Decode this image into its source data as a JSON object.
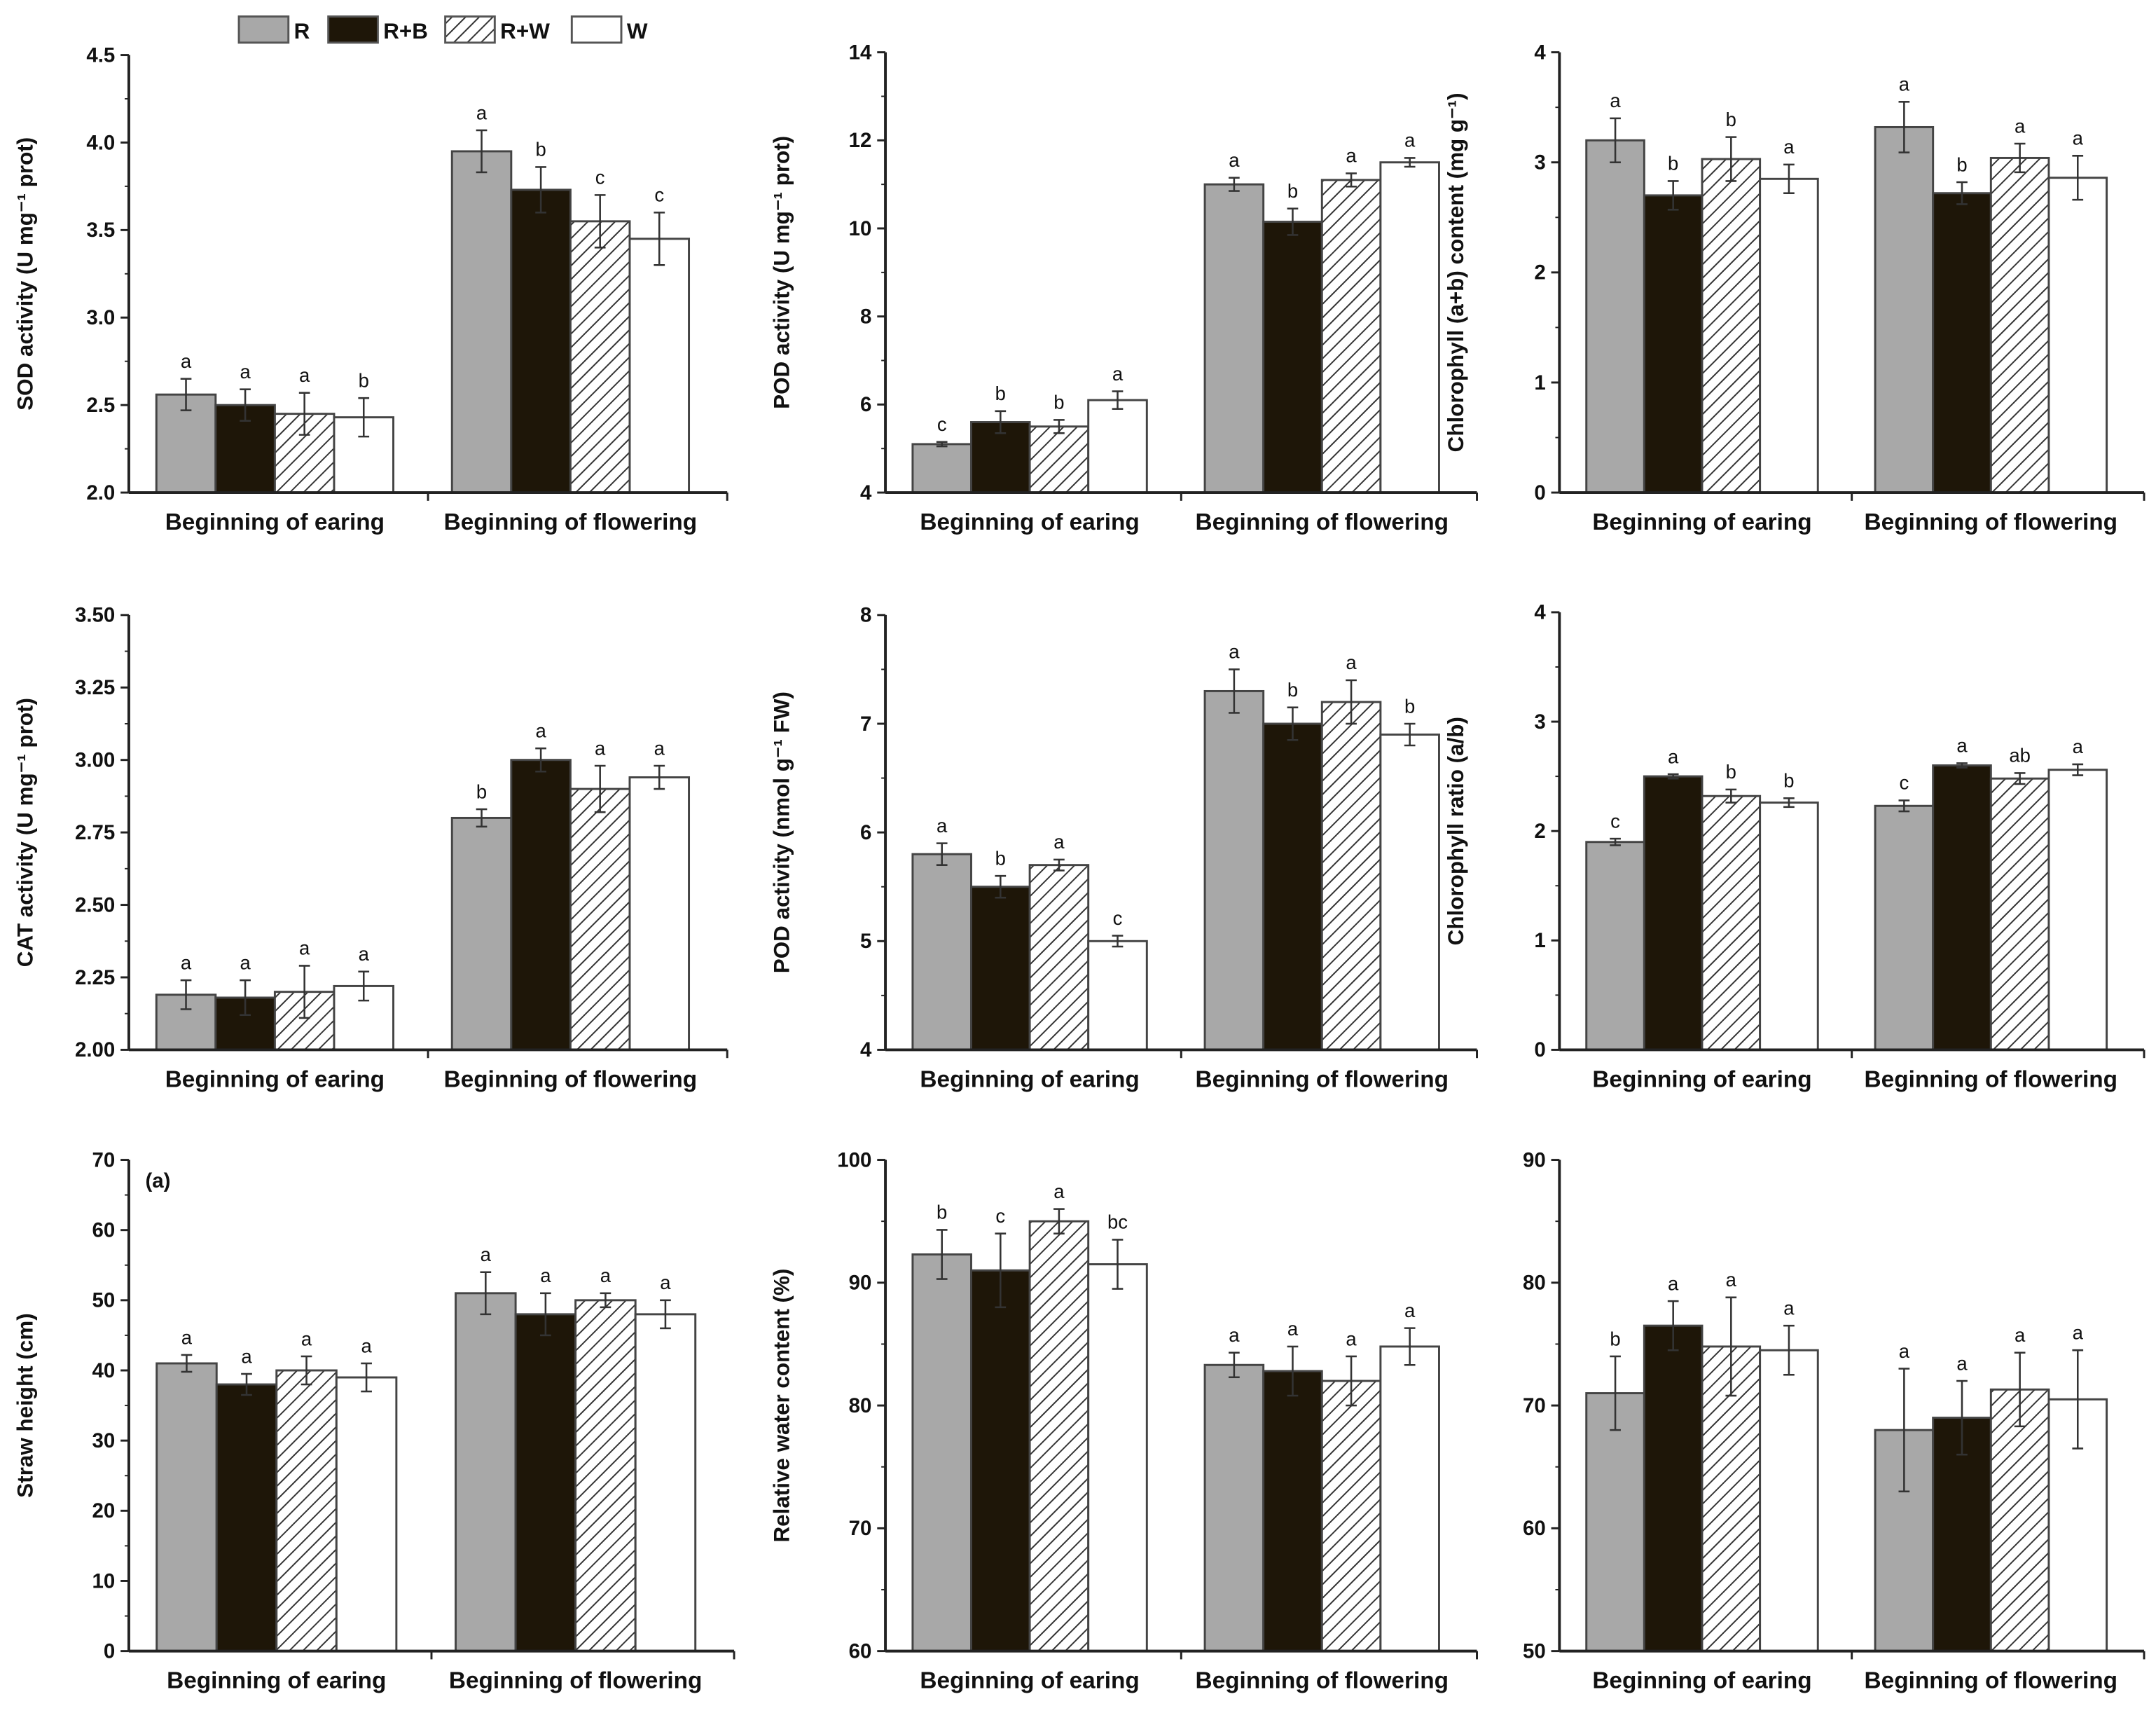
{
  "legend": {
    "placement": "top",
    "items": [
      {
        "name": "R",
        "color": "#a8a8a8",
        "pattern": "solid"
      },
      {
        "name": "R+B",
        "color": "#1e1608",
        "pattern": "solid"
      },
      {
        "name": "R+W",
        "color": "#ffffff",
        "pattern": "hatch"
      },
      {
        "name": "W",
        "color": "#ffffff",
        "pattern": "solid"
      }
    ]
  },
  "chart_data": [
    {
      "type": "bar",
      "ylabel": "SOD activity (U mg⁻¹ prot)",
      "ylim": [
        2.0,
        4.5
      ],
      "yticks": [
        "2.0",
        "2.5",
        "3.0",
        "3.5",
        "4.0",
        "4.5"
      ],
      "categories": [
        "Beginning of earing",
        "Beginning of flowering"
      ],
      "series": [
        {
          "name": "R",
          "values": [
            2.56,
            3.95
          ],
          "errors": [
            0.09,
            0.12
          ],
          "letters": [
            "a",
            "a"
          ]
        },
        {
          "name": "R+B",
          "values": [
            2.5,
            3.73
          ],
          "errors": [
            0.09,
            0.13
          ],
          "letters": [
            "a",
            "b"
          ]
        },
        {
          "name": "R+W",
          "values": [
            2.45,
            3.55
          ],
          "errors": [
            0.12,
            0.15
          ],
          "letters": [
            "a",
            "c"
          ]
        },
        {
          "name": "W",
          "values": [
            2.43,
            3.45
          ],
          "errors": [
            0.11,
            0.15
          ],
          "letters": [
            "b",
            "c"
          ]
        }
      ]
    },
    {
      "type": "bar",
      "ylabel": "POD activity (U mg⁻¹ prot)",
      "ylim": [
        4,
        14
      ],
      "yticks": [
        "4",
        "6",
        "8",
        "10",
        "12",
        "14"
      ],
      "categories": [
        "Beginning of earing",
        "Beginning of flowering"
      ],
      "series": [
        {
          "name": "R",
          "values": [
            5.1,
            11.0
          ],
          "errors": [
            0.05,
            0.15
          ],
          "letters": [
            "c",
            "a"
          ]
        },
        {
          "name": "R+B",
          "values": [
            5.6,
            10.15
          ],
          "errors": [
            0.25,
            0.3
          ],
          "letters": [
            "b",
            "b"
          ]
        },
        {
          "name": "R+W",
          "values": [
            5.5,
            11.1
          ],
          "errors": [
            0.15,
            0.15
          ],
          "letters": [
            "b",
            "a"
          ]
        },
        {
          "name": "W",
          "values": [
            6.1,
            11.5
          ],
          "errors": [
            0.2,
            0.1
          ],
          "letters": [
            "a",
            "a"
          ]
        }
      ]
    },
    {
      "type": "bar",
      "ylabel": "Chlorophyll (a+b) content (mg g⁻¹)",
      "ylim": [
        0,
        4
      ],
      "yticks": [
        "0",
        "1",
        "2",
        "3",
        "4"
      ],
      "categories": [
        "Beginning of earing",
        "Beginning of flowering"
      ],
      "series": [
        {
          "name": "R",
          "values": [
            3.2,
            3.32
          ],
          "errors": [
            0.2,
            0.23
          ],
          "letters": [
            "a",
            "a"
          ]
        },
        {
          "name": "R+B",
          "values": [
            2.7,
            2.72
          ],
          "errors": [
            0.13,
            0.1
          ],
          "letters": [
            "b",
            "b"
          ]
        },
        {
          "name": "R+W",
          "values": [
            3.03,
            3.04
          ],
          "errors": [
            0.2,
            0.13
          ],
          "letters": [
            "b",
            "a"
          ]
        },
        {
          "name": "W",
          "values": [
            2.85,
            2.86
          ],
          "errors": [
            0.13,
            0.2
          ],
          "letters": [
            "a",
            "a"
          ]
        }
      ]
    },
    {
      "type": "bar",
      "ylabel": "CAT activity (U mg⁻¹ prot)",
      "ylim": [
        2.0,
        3.5
      ],
      "yticks": [
        "2.00",
        "2.25",
        "2.50",
        "2.75",
        "3.00",
        "3.25",
        "3.50"
      ],
      "categories": [
        "Beginning of earing",
        "Beginning of flowering"
      ],
      "series": [
        {
          "name": "R",
          "values": [
            2.19,
            2.8
          ],
          "errors": [
            0.05,
            0.03
          ],
          "letters": [
            "a",
            "b"
          ]
        },
        {
          "name": "R+B",
          "values": [
            2.18,
            3.0
          ],
          "errors": [
            0.06,
            0.04
          ],
          "letters": [
            "a",
            "a"
          ]
        },
        {
          "name": "R+W",
          "values": [
            2.2,
            2.9
          ],
          "errors": [
            0.09,
            0.08
          ],
          "letters": [
            "a",
            "a"
          ]
        },
        {
          "name": "W",
          "values": [
            2.22,
            2.94
          ],
          "errors": [
            0.05,
            0.04
          ],
          "letters": [
            "a",
            "a"
          ]
        }
      ]
    },
    {
      "type": "bar",
      "ylabel": "POD activity (nmol g⁻¹ FW)",
      "ylim": [
        4,
        8
      ],
      "yticks": [
        "4",
        "5",
        "6",
        "7",
        "8"
      ],
      "categories": [
        "Beginning of earing",
        "Beginning of flowering"
      ],
      "series": [
        {
          "name": "R",
          "values": [
            5.8,
            7.3
          ],
          "errors": [
            0.1,
            0.2
          ],
          "letters": [
            "a",
            "a"
          ]
        },
        {
          "name": "R+B",
          "values": [
            5.5,
            7.0
          ],
          "errors": [
            0.1,
            0.15
          ],
          "letters": [
            "b",
            "b"
          ]
        },
        {
          "name": "R+W",
          "values": [
            5.7,
            7.2
          ],
          "errors": [
            0.05,
            0.2
          ],
          "letters": [
            "a",
            "a"
          ]
        },
        {
          "name": "W",
          "values": [
            5.0,
            6.9
          ],
          "errors": [
            0.05,
            0.1
          ],
          "letters": [
            "c",
            "b"
          ]
        }
      ]
    },
    {
      "type": "bar",
      "ylabel": "Chlorophyll ratio (a/b)",
      "ylim": [
        0,
        4
      ],
      "yticks": [
        "0",
        "1",
        "2",
        "3",
        "4"
      ],
      "categories": [
        "Beginning of earing",
        "Beginning of flowering"
      ],
      "series": [
        {
          "name": "R",
          "values": [
            1.9,
            2.23
          ],
          "errors": [
            0.03,
            0.05
          ],
          "letters": [
            "c",
            "c"
          ]
        },
        {
          "name": "R+B",
          "values": [
            2.5,
            2.6
          ],
          "errors": [
            0.02,
            0.02
          ],
          "letters": [
            "a",
            "a"
          ]
        },
        {
          "name": "R+W",
          "values": [
            2.32,
            2.48
          ],
          "errors": [
            0.06,
            0.05
          ],
          "letters": [
            "b",
            "ab"
          ]
        },
        {
          "name": "W",
          "values": [
            2.26,
            2.56
          ],
          "errors": [
            0.04,
            0.05
          ],
          "letters": [
            "b",
            "a"
          ]
        }
      ]
    },
    {
      "type": "bar",
      "ylabel": "Straw height (cm)",
      "ylim": [
        0,
        70
      ],
      "annotation": "(a)",
      "yticks": [
        "0",
        "10",
        "20",
        "30",
        "40",
        "50",
        "60",
        "70"
      ],
      "categories": [
        "Beginning of earing",
        "Beginning of flowering"
      ],
      "series": [
        {
          "name": "R",
          "values": [
            41,
            51
          ],
          "errors": [
            1.2,
            3
          ],
          "letters": [
            "a",
            "a"
          ]
        },
        {
          "name": "R+B",
          "values": [
            38,
            48
          ],
          "errors": [
            1.5,
            3
          ],
          "letters": [
            "a",
            "a"
          ]
        },
        {
          "name": "R+W",
          "values": [
            40,
            50
          ],
          "errors": [
            2,
            1
          ],
          "letters": [
            "a",
            "a"
          ]
        },
        {
          "name": "W",
          "values": [
            39,
            48
          ],
          "errors": [
            2,
            2
          ],
          "letters": [
            "a",
            "a"
          ]
        }
      ]
    },
    {
      "type": "bar",
      "ylabel": "Relative water content (%)",
      "ylim": [
        60,
        100
      ],
      "yticks": [
        "60",
        "70",
        "80",
        "90",
        "100"
      ],
      "categories": [
        "Beginning of earing",
        "Beginning of flowering"
      ],
      "series": [
        {
          "name": "R",
          "values": [
            92.3,
            83.3
          ],
          "errors": [
            2,
            1
          ],
          "letters": [
            "b",
            "a"
          ]
        },
        {
          "name": "R+B",
          "values": [
            91,
            82.8
          ],
          "errors": [
            3,
            2
          ],
          "letters": [
            "c",
            "a"
          ]
        },
        {
          "name": "R+W",
          "values": [
            95,
            82
          ],
          "errors": [
            1,
            2
          ],
          "letters": [
            "a",
            "a"
          ]
        },
        {
          "name": "W",
          "values": [
            91.5,
            84.8
          ],
          "errors": [
            2,
            1.5
          ],
          "letters": [
            "bc",
            "a"
          ]
        }
      ]
    },
    {
      "type": "bar",
      "ylabel": "",
      "ylim": [
        50,
        90
      ],
      "yticks": [
        "50",
        "60",
        "70",
        "80",
        "90"
      ],
      "categories": [
        "Beginning of earing",
        "Beginning of flowering"
      ],
      "series": [
        {
          "name": "R",
          "values": [
            71,
            68
          ],
          "errors": [
            3,
            5
          ],
          "letters": [
            "b",
            "a"
          ]
        },
        {
          "name": "R+B",
          "values": [
            76.5,
            69
          ],
          "errors": [
            2,
            3
          ],
          "letters": [
            "a",
            "a"
          ]
        },
        {
          "name": "R+W",
          "values": [
            74.8,
            71.3
          ],
          "errors": [
            4,
            3
          ],
          "letters": [
            "a",
            "a"
          ]
        },
        {
          "name": "W",
          "values": [
            74.5,
            70.5
          ],
          "errors": [
            2,
            4
          ],
          "letters": [
            "a",
            "a"
          ]
        }
      ]
    }
  ]
}
